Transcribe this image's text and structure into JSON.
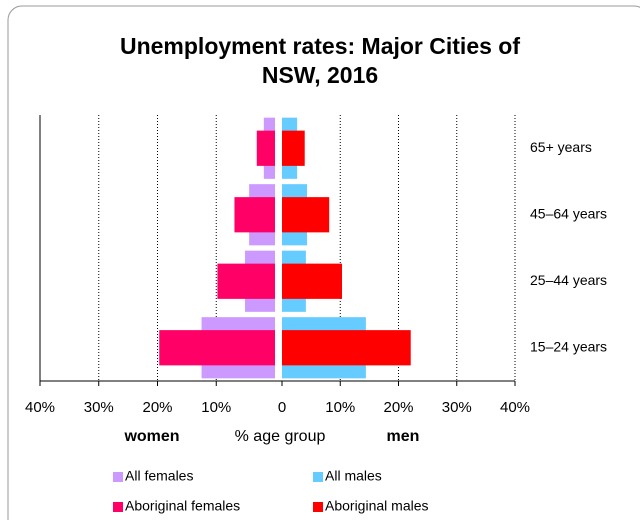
{
  "chart_data": {
    "type": "pyramid",
    "title": "Unemployment rates: Major Cities of NSW, 2016",
    "categories": [
      "65+ years",
      "45–64 years",
      "25–44 years",
      "15–24 years"
    ],
    "left_label": "women",
    "center_label": "% age group",
    "right_label": "men",
    "left": {
      "xlim": [
        0,
        40
      ],
      "xticks": [
        {
          "value": 40,
          "label": "40%"
        },
        {
          "value": 30,
          "label": "30%"
        },
        {
          "value": 20,
          "label": "20%"
        },
        {
          "value": 10,
          "label": "10%"
        }
      ],
      "color": "#ff0000"
    },
    "right": {
      "xlim": [
        0,
        40
      ],
      "xticks": [
        0,
        {
          "value": 10,
          "label": "10%"
        },
        {
          "value": 20,
          "label": "20%"
        },
        {
          "value": 30,
          "label": "30%"
        },
        {
          "value": 40,
          "label": "40%"
        }
      ],
      "color": "#3333cc"
    },
    "grid": true,
    "series": [
      {
        "name": "All females",
        "side": "left",
        "kind": "all",
        "color": "#cc99ff",
        "values": [
          1.9,
          4.4,
          5.1,
          12.5
        ]
      },
      {
        "name": "All males",
        "side": "right",
        "kind": "all",
        "color": "#66ccff",
        "values": [
          2.6,
          4.3,
          4.1,
          14.4
        ]
      },
      {
        "name": "Aboriginal females",
        "side": "left",
        "kind": "aboriginal",
        "color": "#ff0066",
        "values": [
          3.1,
          6.9,
          9.8,
          19.7
        ]
      },
      {
        "name": "Aboriginal males",
        "side": "right",
        "kind": "aboriginal",
        "color": "#ff0000",
        "values": [
          3.9,
          8.1,
          10.3,
          22.1
        ]
      }
    ]
  }
}
